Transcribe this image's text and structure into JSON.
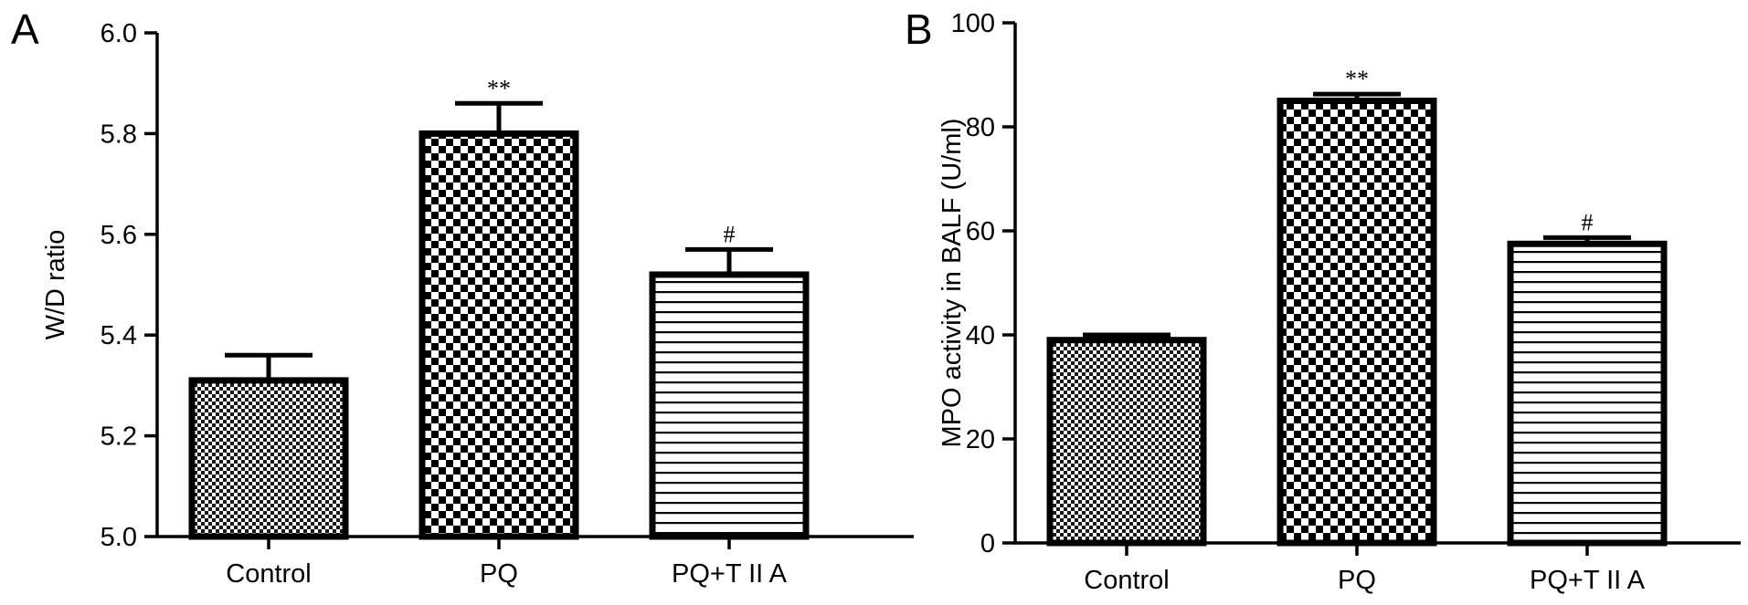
{
  "chart_data": [
    {
      "type": "bar",
      "panel_label": "A",
      "categories": [
        "Control",
        "PQ",
        "PQ+T II A"
      ],
      "values": [
        5.31,
        5.8,
        5.52
      ],
      "errors": [
        0.05,
        0.06,
        0.05
      ],
      "significance": [
        "",
        "**",
        "#"
      ],
      "patterns": [
        "fine-checker",
        "coarse-checker",
        "horizontal-lines"
      ],
      "xlabel": "",
      "ylabel": "W/D ratio",
      "ylim": [
        5.0,
        6.0
      ],
      "yticks": [
        "5.0",
        "5.2",
        "5.4",
        "5.6",
        "5.8",
        "6.0"
      ],
      "grid": false,
      "legend": "none"
    },
    {
      "type": "bar",
      "panel_label": "B",
      "categories": [
        "Control",
        "PQ",
        "PQ+T II A"
      ],
      "values": [
        39,
        85,
        57.5
      ],
      "errors": [
        1,
        1.3,
        1.2
      ],
      "significance": [
        "",
        "**",
        "#"
      ],
      "patterns": [
        "fine-checker",
        "coarse-checker",
        "horizontal-lines"
      ],
      "xlabel": "",
      "ylabel": "MPO activity in BALF (U/ml)",
      "ylim": [
        0,
        100
      ],
      "yticks": [
        "0",
        "20",
        "40",
        "60",
        "80",
        "100"
      ],
      "grid": false,
      "legend": "none"
    }
  ]
}
